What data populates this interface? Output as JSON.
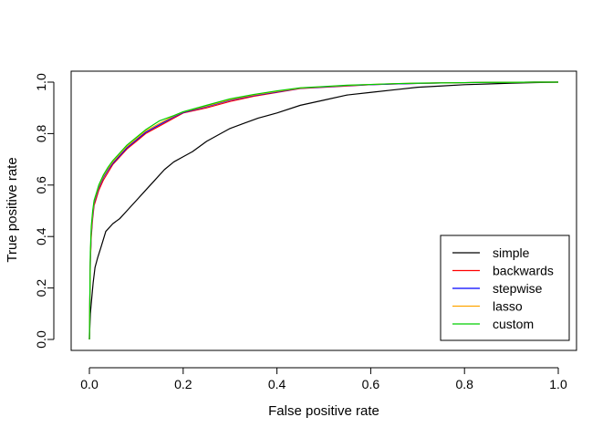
{
  "chart_data": {
    "type": "line",
    "title": "",
    "xlabel": "False positive rate",
    "ylabel": "True positive rate",
    "xlim": [
      0,
      1
    ],
    "ylim": [
      0,
      1
    ],
    "xticks": [
      0,
      0.2,
      0.4,
      0.6,
      0.8,
      1
    ],
    "xtick_labels": [
      "0.0",
      "0.2",
      "0.4",
      "0.6",
      "0.8",
      "1.0"
    ],
    "yticks": [
      0,
      0.2,
      0.4,
      0.6,
      0.8,
      1
    ],
    "ytick_labels": [
      "0.0",
      "0.2",
      "0.4",
      "0.6",
      "0.8",
      "1.0"
    ],
    "grid": false,
    "legend_position": "bottom-right",
    "series": [
      {
        "name": "simple",
        "color": "#000000",
        "x": [
          0,
          0.002,
          0.005,
          0.008,
          0.012,
          0.018,
          0.025,
          0.035,
          0.05,
          0.065,
          0.08,
          0.1,
          0.12,
          0.14,
          0.16,
          0.18,
          0.2,
          0.22,
          0.25,
          0.28,
          0.3,
          0.33,
          0.36,
          0.4,
          0.45,
          0.5,
          0.55,
          0.6,
          0.65,
          0.7,
          0.75,
          0.8,
          0.85,
          0.9,
          0.95,
          1.0
        ],
        "y": [
          0,
          0.1,
          0.16,
          0.22,
          0.28,
          0.32,
          0.36,
          0.42,
          0.45,
          0.47,
          0.5,
          0.54,
          0.58,
          0.62,
          0.66,
          0.69,
          0.71,
          0.73,
          0.77,
          0.8,
          0.82,
          0.84,
          0.86,
          0.88,
          0.91,
          0.93,
          0.95,
          0.96,
          0.97,
          0.98,
          0.985,
          0.99,
          0.993,
          0.996,
          0.998,
          1.0
        ]
      },
      {
        "name": "backwards",
        "color": "#FF0000",
        "x": [
          0,
          0.002,
          0.004,
          0.007,
          0.01,
          0.015,
          0.02,
          0.03,
          0.04,
          0.05,
          0.06,
          0.08,
          0.1,
          0.12,
          0.15,
          0.18,
          0.2,
          0.25,
          0.3,
          0.35,
          0.4,
          0.45,
          0.5,
          0.55,
          0.6,
          0.65,
          0.7,
          0.75,
          0.8,
          0.85,
          0.9,
          0.95,
          1.0
        ],
        "y": [
          0,
          0.3,
          0.4,
          0.47,
          0.52,
          0.55,
          0.58,
          0.62,
          0.65,
          0.68,
          0.7,
          0.74,
          0.77,
          0.8,
          0.83,
          0.86,
          0.88,
          0.9,
          0.925,
          0.945,
          0.96,
          0.975,
          0.98,
          0.985,
          0.99,
          0.993,
          0.995,
          0.997,
          0.998,
          0.999,
          0.999,
          1.0,
          1.0
        ]
      },
      {
        "name": "stepwise",
        "color": "#0000FF",
        "x": [
          0,
          0.002,
          0.004,
          0.007,
          0.01,
          0.015,
          0.02,
          0.03,
          0.04,
          0.05,
          0.06,
          0.08,
          0.1,
          0.12,
          0.15,
          0.18,
          0.2,
          0.25,
          0.3,
          0.35,
          0.4,
          0.45,
          0.5,
          0.55,
          0.6,
          0.65,
          0.7,
          0.75,
          0.8,
          0.85,
          0.9,
          0.95,
          1.0
        ],
        "y": [
          0,
          0.31,
          0.41,
          0.48,
          0.53,
          0.56,
          0.59,
          0.63,
          0.66,
          0.685,
          0.705,
          0.745,
          0.775,
          0.805,
          0.835,
          0.865,
          0.882,
          0.905,
          0.93,
          0.948,
          0.962,
          0.976,
          0.981,
          0.986,
          0.99,
          0.993,
          0.995,
          0.997,
          0.998,
          0.999,
          0.999,
          1.0,
          1.0
        ]
      },
      {
        "name": "lasso",
        "color": "#FFA500",
        "x": [
          0,
          0.002,
          0.004,
          0.007,
          0.01,
          0.015,
          0.02,
          0.03,
          0.04,
          0.05,
          0.06,
          0.08,
          0.1,
          0.12,
          0.15,
          0.18,
          0.2,
          0.25,
          0.3,
          0.35,
          0.4,
          0.45,
          0.5,
          0.55,
          0.6,
          0.65,
          0.7,
          0.75,
          0.8,
          0.85,
          0.9,
          0.95,
          1.0
        ],
        "y": [
          0,
          0.32,
          0.42,
          0.49,
          0.535,
          0.565,
          0.595,
          0.635,
          0.665,
          0.69,
          0.71,
          0.75,
          0.78,
          0.81,
          0.84,
          0.868,
          0.884,
          0.907,
          0.932,
          0.95,
          0.964,
          0.977,
          0.982,
          0.987,
          0.991,
          0.994,
          0.996,
          0.997,
          0.998,
          0.999,
          0.999,
          1.0,
          1.0
        ]
      },
      {
        "name": "custom",
        "color": "#00CD00",
        "x": [
          0,
          0.002,
          0.004,
          0.007,
          0.01,
          0.015,
          0.02,
          0.03,
          0.04,
          0.05,
          0.06,
          0.08,
          0.1,
          0.12,
          0.15,
          0.18,
          0.2,
          0.25,
          0.3,
          0.35,
          0.4,
          0.45,
          0.5,
          0.55,
          0.6,
          0.65,
          0.7,
          0.75,
          0.8,
          0.85,
          0.9,
          0.95,
          1.0
        ],
        "y": [
          0,
          0.34,
          0.44,
          0.5,
          0.54,
          0.57,
          0.6,
          0.64,
          0.67,
          0.695,
          0.715,
          0.755,
          0.785,
          0.815,
          0.85,
          0.87,
          0.885,
          0.91,
          0.935,
          0.952,
          0.966,
          0.978,
          0.983,
          0.988,
          0.991,
          0.994,
          0.996,
          0.997,
          0.998,
          0.999,
          0.999,
          1.0,
          1.0
        ]
      }
    ]
  }
}
